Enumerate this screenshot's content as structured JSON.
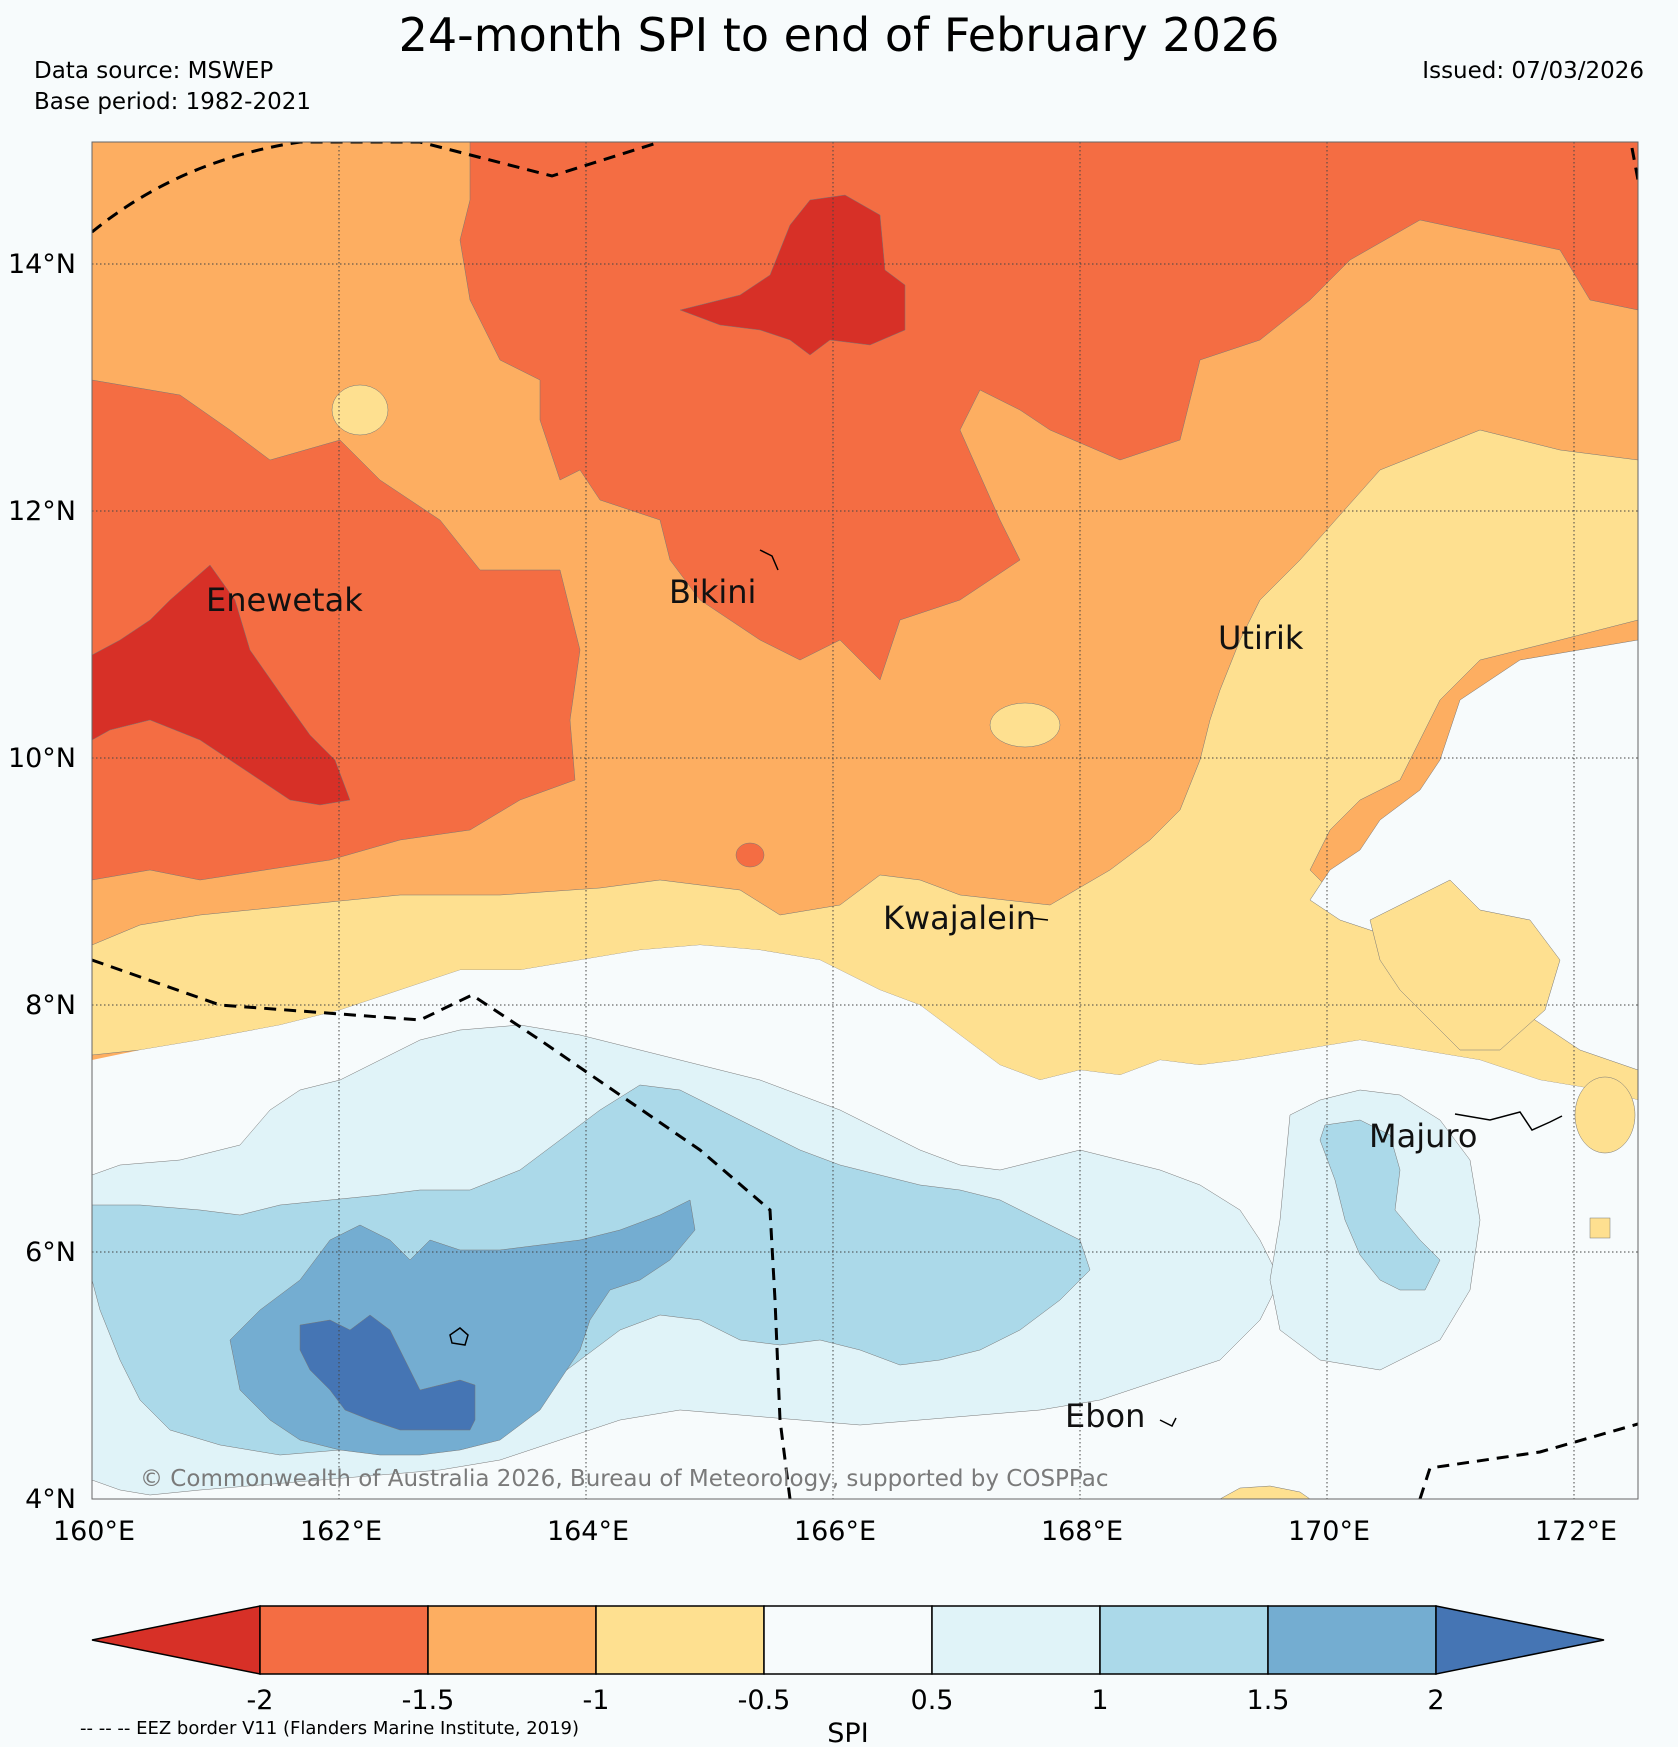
{
  "title": "24-month SPI to end of February 2026",
  "data_source": "Data source: MSWEP",
  "base_period": "Base period: 1982-2021",
  "issued": "Issued: 07/03/2026",
  "copyright": "© Commonwealth of Australia 2026, Bureau of Meteorology, supported by COSPPac",
  "eez_note": "-- -- -- EEZ border V11 (Flanders Marine Institute, 2019)",
  "colorbar": {
    "label": "SPI",
    "ticks": [
      "-2",
      "-1.5",
      "-1",
      "-0.5",
      "0.5",
      "1",
      "1.5",
      "2"
    ],
    "colors": {
      "lt_-2": "#d73027",
      "-2_-1.5": "#f46d43",
      "-1.5_-1": "#fdae61",
      "-1_-0.5": "#fee090",
      "-0.5_0.5": "#f7fbfc",
      "0.5_1": "#e0f3f8",
      "1_1.5": "#abd9e9",
      "1.5_2": "#74add1",
      "gt_2": "#4575b4"
    }
  },
  "map": {
    "lat_labels": [
      "14°N",
      "12°N",
      "10°N",
      "8°N",
      "6°N",
      "4°N"
    ],
    "lon_labels": [
      "160°E",
      "162°E",
      "164°E",
      "166°E",
      "168°E",
      "170°E",
      "172°E"
    ],
    "places": [
      "Enewetak",
      "Bikini",
      "Utirik",
      "Kwajalein",
      "Majuro",
      "Ebon"
    ]
  }
}
